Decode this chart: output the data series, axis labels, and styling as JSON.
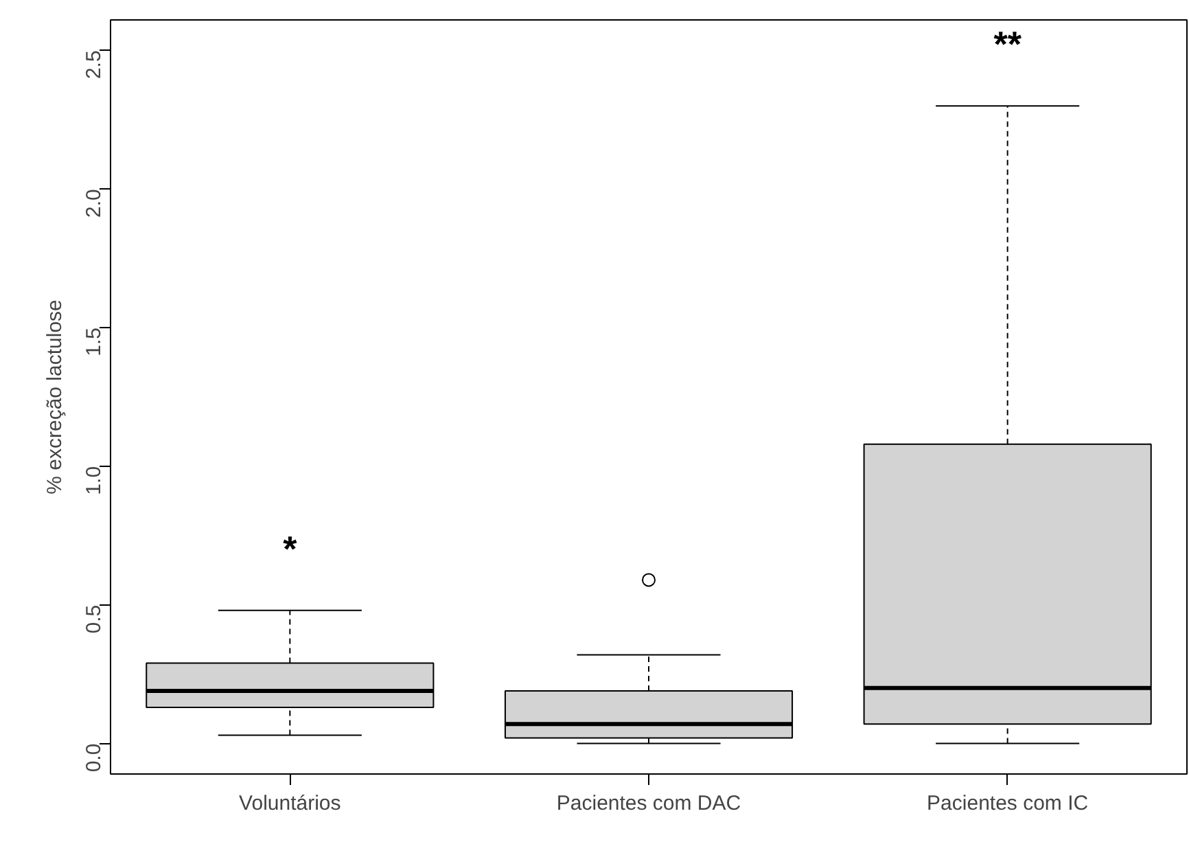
{
  "chart_data": {
    "type": "box",
    "ylabel": "% excreção lactulose",
    "categories": [
      "Voluntários",
      "Pacientes com DAC",
      "Pacientes com IC"
    ],
    "color": "#d3d3d3",
    "boxes": [
      {
        "low": 0.03,
        "q1": 0.13,
        "median": 0.19,
        "q3": 0.29,
        "high": 0.48
      },
      {
        "low": 0.0,
        "q1": 0.02,
        "median": 0.07,
        "q3": 0.19,
        "high": 0.32,
        "outliers": [
          0.59
        ]
      },
      {
        "low": 0.0,
        "q1": 0.07,
        "median": 0.2,
        "q3": 1.08,
        "high": 2.3
      }
    ],
    "ylim": [
      -0.11,
      2.61
    ],
    "yticks": [
      {
        "value": 0,
        "label": "0.0"
      },
      0.5,
      {
        "value": 1,
        "label": "1.0"
      },
      1.5,
      {
        "value": 2,
        "label": "2.0"
      },
      2.5
    ],
    "grid": false,
    "annotations": [
      "*",
      "**"
    ]
  }
}
